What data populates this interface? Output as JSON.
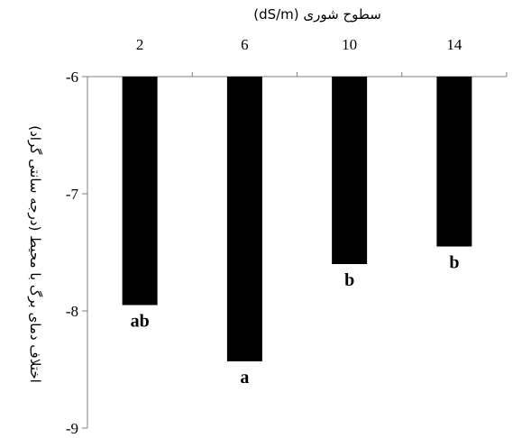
{
  "chart_data": {
    "type": "bar",
    "xlabel": "سطوح شوری (dS/m)",
    "ylabel": "اختلاف دمای برگ با محیط (درجه سانتی گراد)",
    "x_axis_position": "top",
    "categories": [
      "2",
      "6",
      "10",
      "14"
    ],
    "values": [
      -7.95,
      -8.43,
      -7.6,
      -7.45
    ],
    "significance_labels": [
      "ab",
      "a",
      "b",
      "b"
    ],
    "ylim": [
      -9,
      -6
    ],
    "yticks": [
      -6,
      -7,
      -8,
      -9
    ],
    "grid": false,
    "legend": "none",
    "bar_color": "#000000"
  }
}
